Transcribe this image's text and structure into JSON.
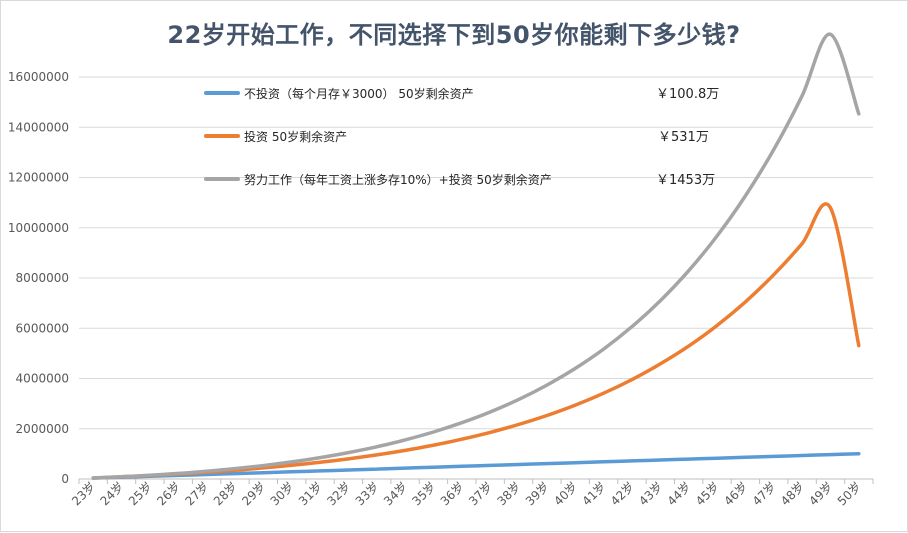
{
  "chart_data": {
    "type": "line",
    "title": "22岁开始工作，不同选择下到50岁你能剩下多少钱?",
    "xlabel": "",
    "ylabel": "",
    "ylim": [
      0,
      16000000
    ],
    "yticks": [
      0,
      2000000,
      4000000,
      6000000,
      8000000,
      10000000,
      12000000,
      14000000,
      16000000
    ],
    "ytick_labels": [
      "0",
      "2000000",
      "4000000",
      "6000000",
      "8000000",
      "10000000",
      "12000000",
      "14000000",
      "16000000"
    ],
    "grid": true,
    "legend_position": "top-left (inside)",
    "categories": [
      "23岁",
      "24岁",
      "25岁",
      "26岁",
      "27岁",
      "28岁",
      "29岁",
      "30岁",
      "31岁",
      "32岁",
      "33岁",
      "34岁",
      "35岁",
      "36岁",
      "37岁",
      "38岁",
      "39岁",
      "40岁",
      "41岁",
      "42岁",
      "43岁",
      "44岁",
      "45岁",
      "46岁",
      "47岁",
      "48岁",
      "49岁",
      "50岁"
    ],
    "series": [
      {
        "name": "不投资（每个月存￥3000）  50岁剩余资产",
        "annotation": "￥100.8万",
        "color": "#5b9bd5",
        "values": [
          36000,
          72000,
          108000,
          144000,
          180000,
          216000,
          252000,
          288000,
          324000,
          360000,
          396000,
          432000,
          468000,
          504000,
          540000,
          576000,
          612000,
          648000,
          684000,
          720000,
          756000,
          792000,
          828000,
          864000,
          900000,
          936000,
          972000,
          1008000
        ]
      },
      {
        "name": "投资  50岁剩余资产",
        "annotation": "￥531万",
        "color": "#ed7d31",
        "values": [
          40000,
          86000,
          139000,
          199000,
          269000,
          348000,
          440000,
          544000,
          664000,
          801000,
          959000,
          1139000,
          1346000,
          1583000,
          1856000,
          2168000,
          2528000,
          2940000,
          3413000,
          3955000,
          4580000,
          5290000,
          6110000,
          7050000,
          8130000,
          9370000,
          10790000,
          5310000
        ]
      },
      {
        "name": "努力工作（每年工资上涨多存10%）+投资  50岁剩余资产",
        "annotation": "￥1453万",
        "color": "#a5a5a5",
        "values": [
          40000,
          90000,
          150000,
          222000,
          310000,
          412000,
          535000,
          680000,
          850000,
          1050000,
          1283000,
          1555000,
          1872000,
          2240000,
          2667000,
          3162000,
          3737000,
          4402000,
          5172000,
          6064000,
          7096000,
          8290000,
          9670000,
          11268000,
          13113000,
          15250000,
          17700000,
          14530000
        ]
      }
    ]
  }
}
